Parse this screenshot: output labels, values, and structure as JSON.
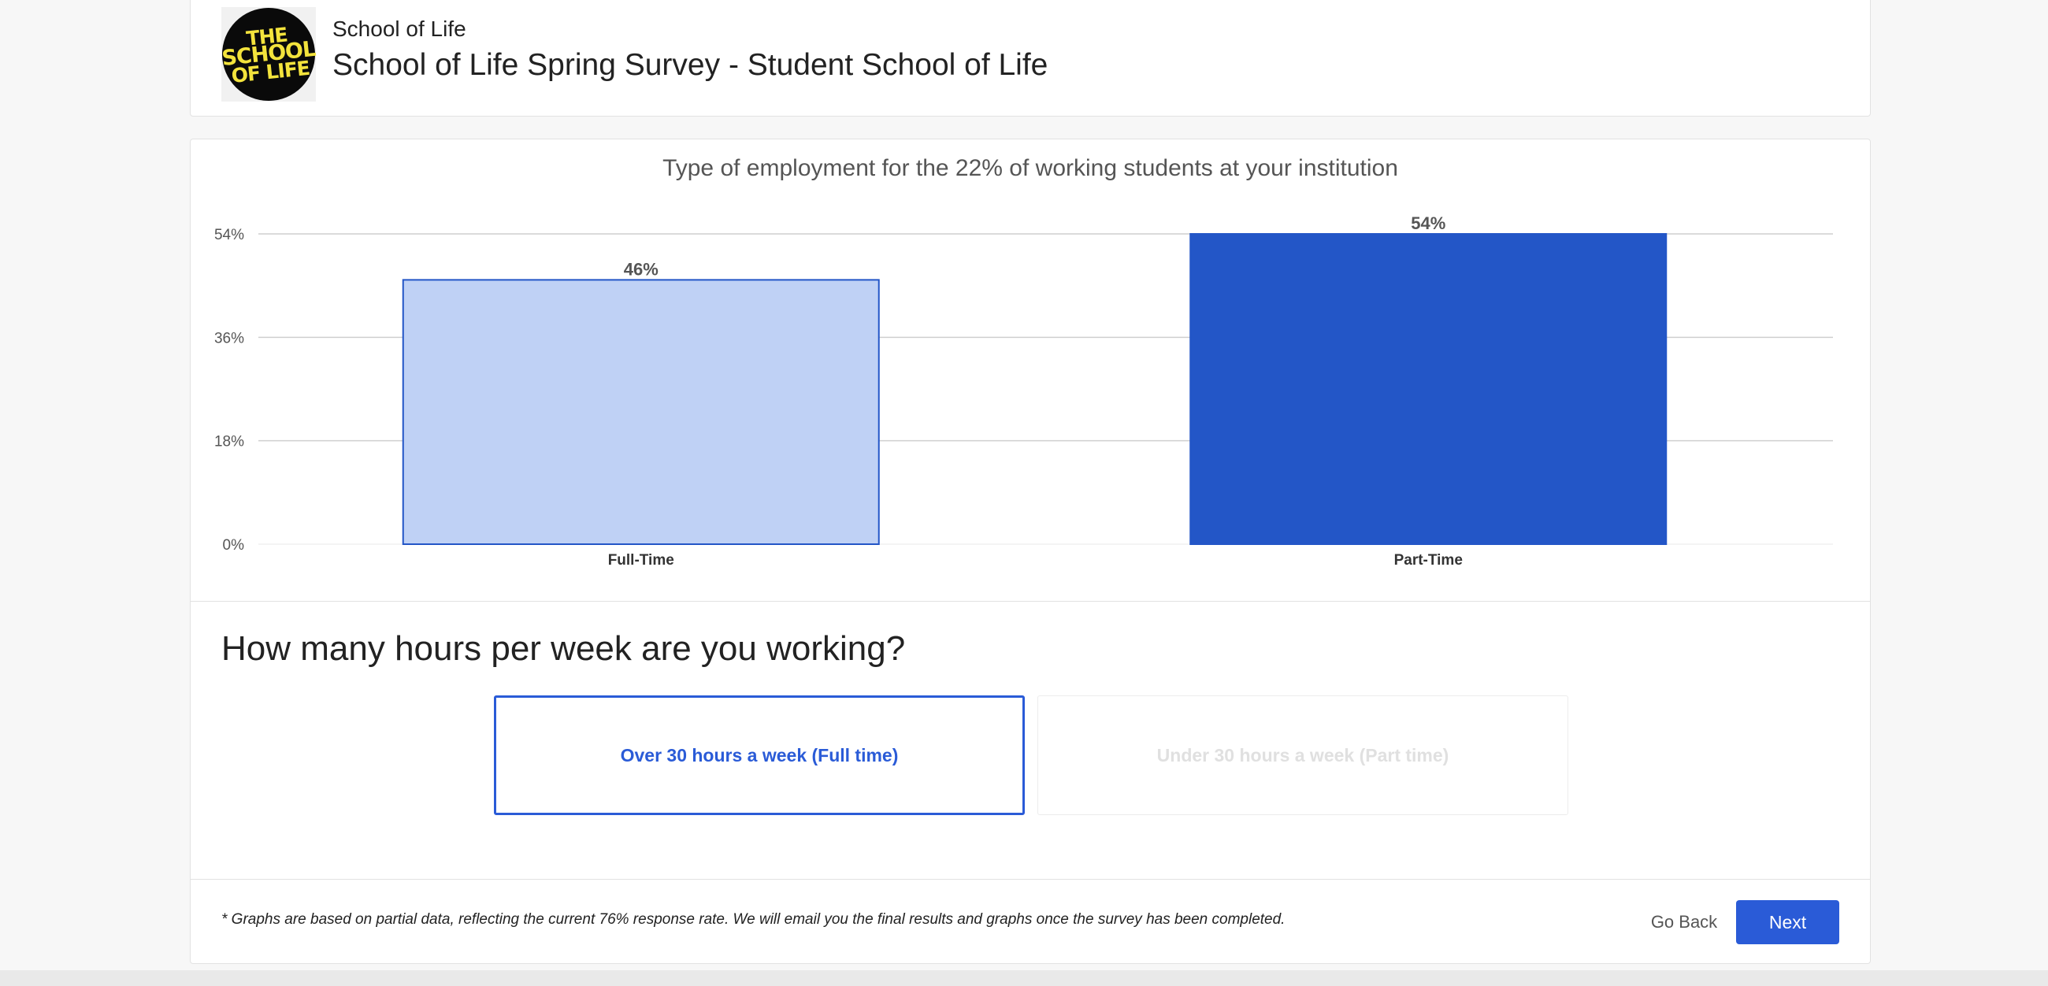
{
  "header": {
    "logo_lines": [
      "THE",
      "SCHOOL",
      "OF LIFE"
    ],
    "org_name": "School of Life",
    "survey_title": "School of Life Spring Survey - Student School of Life"
  },
  "chart_data": {
    "type": "bar",
    "title": "Type of employment for the 22% of working students at your institution",
    "categories": [
      "Full-Time",
      "Part-Time"
    ],
    "values": [
      46,
      54
    ],
    "value_labels": [
      "46%",
      "54%"
    ],
    "yticks": [
      0,
      18,
      36,
      54
    ],
    "ytick_labels": [
      "0%",
      "18%",
      "36%",
      "54%"
    ],
    "ylim": [
      0,
      54
    ],
    "grid": true,
    "colors": [
      "#bfd1f5",
      "#2356c7"
    ],
    "xlabel": "",
    "ylabel": ""
  },
  "question": {
    "text": "How many hours per week are you working?",
    "options": [
      {
        "label": "Over 30 hours a week (Full time)",
        "selected": true
      },
      {
        "label": "Under 30 hours a week (Part time)",
        "selected": false
      }
    ]
  },
  "footer": {
    "note": "* Graphs are based on partial data, reflecting the current 76% response rate. We will email you the final results and graphs once the survey has been completed.",
    "back_label": "Go Back",
    "next_label": "Next"
  },
  "colors": {
    "accent": "#2a5bd7",
    "background": "#f7f7f7"
  }
}
